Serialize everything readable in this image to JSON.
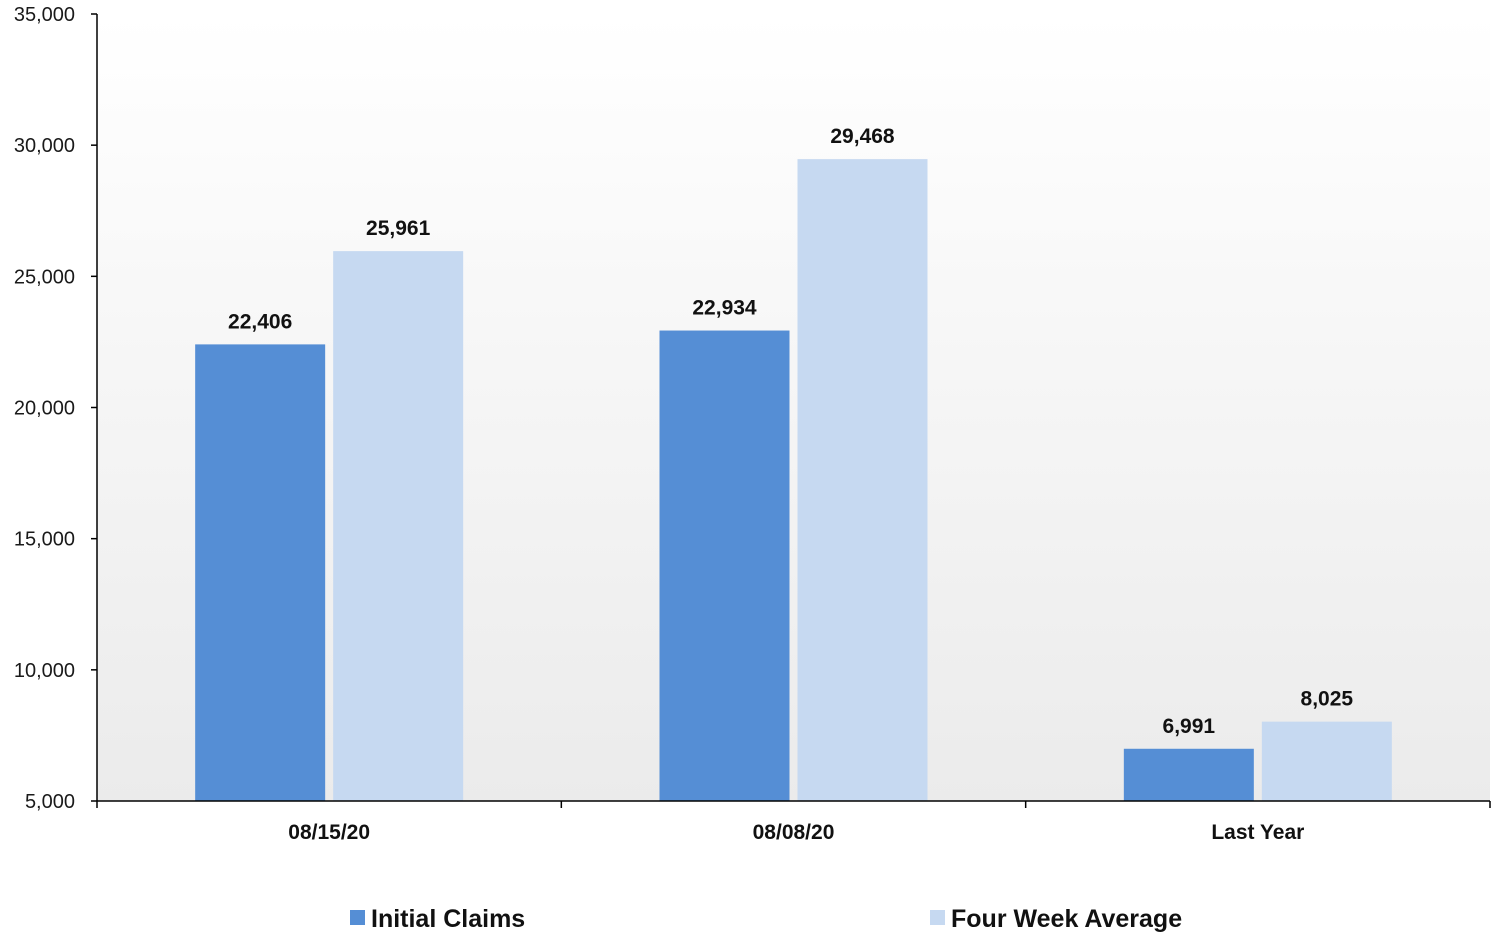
{
  "chart_data": {
    "type": "bar",
    "categories": [
      "08/15/20",
      "08/08/20",
      "Last Year"
    ],
    "series": [
      {
        "name": "Initial Claims",
        "values": [
          22406,
          22934,
          6991
        ],
        "color": "#558ed5"
      },
      {
        "name": "Four Week Average",
        "values": [
          25961,
          29468,
          8025
        ],
        "color": "#c6d9f1"
      }
    ],
    "data_labels": [
      [
        "22,406",
        "22,934",
        "6,991"
      ],
      [
        "25,961",
        "29,468",
        "8,025"
      ]
    ],
    "y_ticks": [
      5000,
      10000,
      15000,
      20000,
      25000,
      30000,
      35000
    ],
    "y_tick_labels": [
      "5,000",
      "10,000",
      "15,000",
      "20,000",
      "25,000",
      "30,000",
      "35,000"
    ],
    "ylim": [
      5000,
      35000
    ],
    "grid": false,
    "legend": {
      "position": "bottom"
    },
    "background": {
      "top": "#ffffff",
      "bottom": "#ebebeb"
    },
    "title": "",
    "xlabel": "",
    "ylabel": ""
  }
}
